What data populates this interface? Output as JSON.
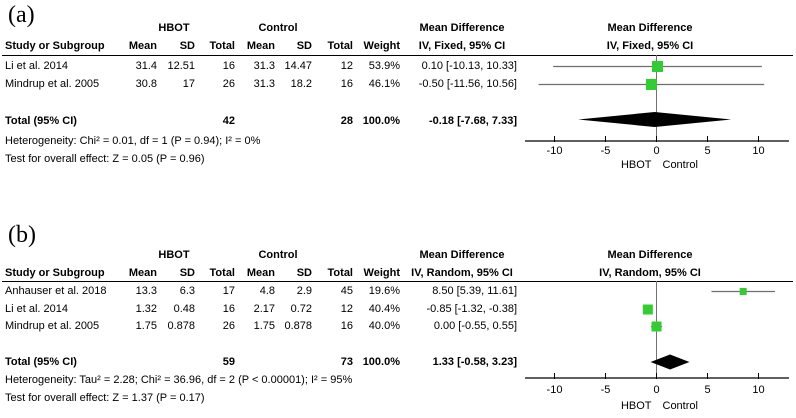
{
  "chart_data": [
    {
      "type": "forest",
      "panel_label": "(a)",
      "group1_header": "HBOT",
      "group2_header": "Control",
      "effect_header": "Mean Difference",
      "effect_subheader": "IV, Fixed, 95% CI",
      "plot_header": "Mean Difference",
      "plot_subheader": "IV, Fixed, 95% CI",
      "columns": {
        "study": "Study or Subgroup",
        "mean": "Mean",
        "sd": "SD",
        "total": "Total",
        "weight": "Weight"
      },
      "rows": [
        {
          "study": "Li et al. 2014",
          "g1_mean": "31.4",
          "g1_sd": "12.51",
          "g1_total": "16",
          "g2_mean": "31.3",
          "g2_sd": "14.47",
          "g2_total": "12",
          "weight": "53.9%",
          "weight_pct": 53.9,
          "ci_text": "0.10 [-10.13, 10.33]",
          "est": 0.1,
          "lo": -10.13,
          "hi": 10.33
        },
        {
          "study": "Mindrup et al. 2005",
          "g1_mean": "30.8",
          "g1_sd": "17",
          "g1_total": "26",
          "g2_mean": "31.3",
          "g2_sd": "18.2",
          "g2_total": "16",
          "weight": "46.1%",
          "weight_pct": 46.1,
          "ci_text": "-0.50 [-11.56, 10.56]",
          "est": -0.5,
          "lo": -11.56,
          "hi": 10.56
        }
      ],
      "total": {
        "label": "Total (95% CI)",
        "g1_total": "42",
        "g2_total": "28",
        "weight": "100.0%",
        "ci_text": "-0.18 [-7.68, 7.33]",
        "est": -0.18,
        "lo": -7.68,
        "hi": 7.33
      },
      "heterogeneity": "Heterogeneity: Chi² = 0.01, df = 1 (P = 0.94); I² = 0%",
      "overall_effect": "Test for overall effect: Z = 0.05 (P = 0.96)",
      "axis": {
        "ticks": [
          -10,
          -5,
          0,
          5,
          10
        ],
        "xmin": -12.8,
        "xmax": 13,
        "left_label": "HBOT",
        "right_label": "Control"
      },
      "colors": {
        "square": "#33cc33",
        "ci_line": "#6e6e6e",
        "zero_line": "#737373",
        "diamond": "#000000",
        "axis": "#000000"
      }
    },
    {
      "type": "forest",
      "panel_label": "(b)",
      "group1_header": "HBOT",
      "group2_header": "Control",
      "effect_header": "Mean Difference",
      "effect_subheader": "IV, Random, 95% CI",
      "plot_header": "Mean Difference",
      "plot_subheader": "IV, Random, 95% CI",
      "columns": {
        "study": "Study or Subgroup",
        "mean": "Mean",
        "sd": "SD",
        "total": "Total",
        "weight": "Weight"
      },
      "rows": [
        {
          "study": "Anhauser et al. 2018",
          "g1_mean": "13.3",
          "g1_sd": "6.3",
          "g1_total": "17",
          "g2_mean": "4.8",
          "g2_sd": "2.9",
          "g2_total": "45",
          "weight": "19.6%",
          "weight_pct": 19.6,
          "ci_text": "8.50 [5.39, 11.61]",
          "est": 8.5,
          "lo": 5.39,
          "hi": 11.61
        },
        {
          "study": "Li et al. 2014",
          "g1_mean": "1.32",
          "g1_sd": "0.48",
          "g1_total": "16",
          "g2_mean": "2.17",
          "g2_sd": "0.72",
          "g2_total": "12",
          "weight": "40.4%",
          "weight_pct": 40.4,
          "ci_text": "-0.85 [-1.32, -0.38]",
          "est": -0.85,
          "lo": -1.32,
          "hi": -0.38
        },
        {
          "study": "Mindrup et al. 2005",
          "g1_mean": "1.75",
          "g1_sd": "0.878",
          "g1_total": "26",
          "g2_mean": "1.75",
          "g2_sd": "0.878",
          "g2_total": "16",
          "weight": "40.0%",
          "weight_pct": 40.0,
          "ci_text": "0.00 [-0.55, 0.55]",
          "est": 0.0,
          "lo": -0.55,
          "hi": 0.55
        }
      ],
      "total": {
        "label": "Total (95% CI)",
        "g1_total": "59",
        "g2_total": "73",
        "weight": "100.0%",
        "ci_text": "1.33 [-0.58, 3.23]",
        "est": 1.33,
        "lo": -0.58,
        "hi": 3.23
      },
      "heterogeneity": "Heterogeneity: Tau² = 2.28; Chi² = 36.96, df = 2 (P < 0.00001); I² = 95%",
      "overall_effect": "Test for overall effect: Z = 1.37 (P = 0.17)",
      "axis": {
        "ticks": [
          -10,
          -5,
          0,
          5,
          10
        ],
        "xmin": -12.8,
        "xmax": 13,
        "left_label": "HBOT",
        "right_label": "Control"
      },
      "colors": {
        "square": "#33cc33",
        "ci_line": "#6e6e6e",
        "zero_line": "#737373",
        "diamond": "#000000",
        "axis": "#000000"
      }
    }
  ]
}
